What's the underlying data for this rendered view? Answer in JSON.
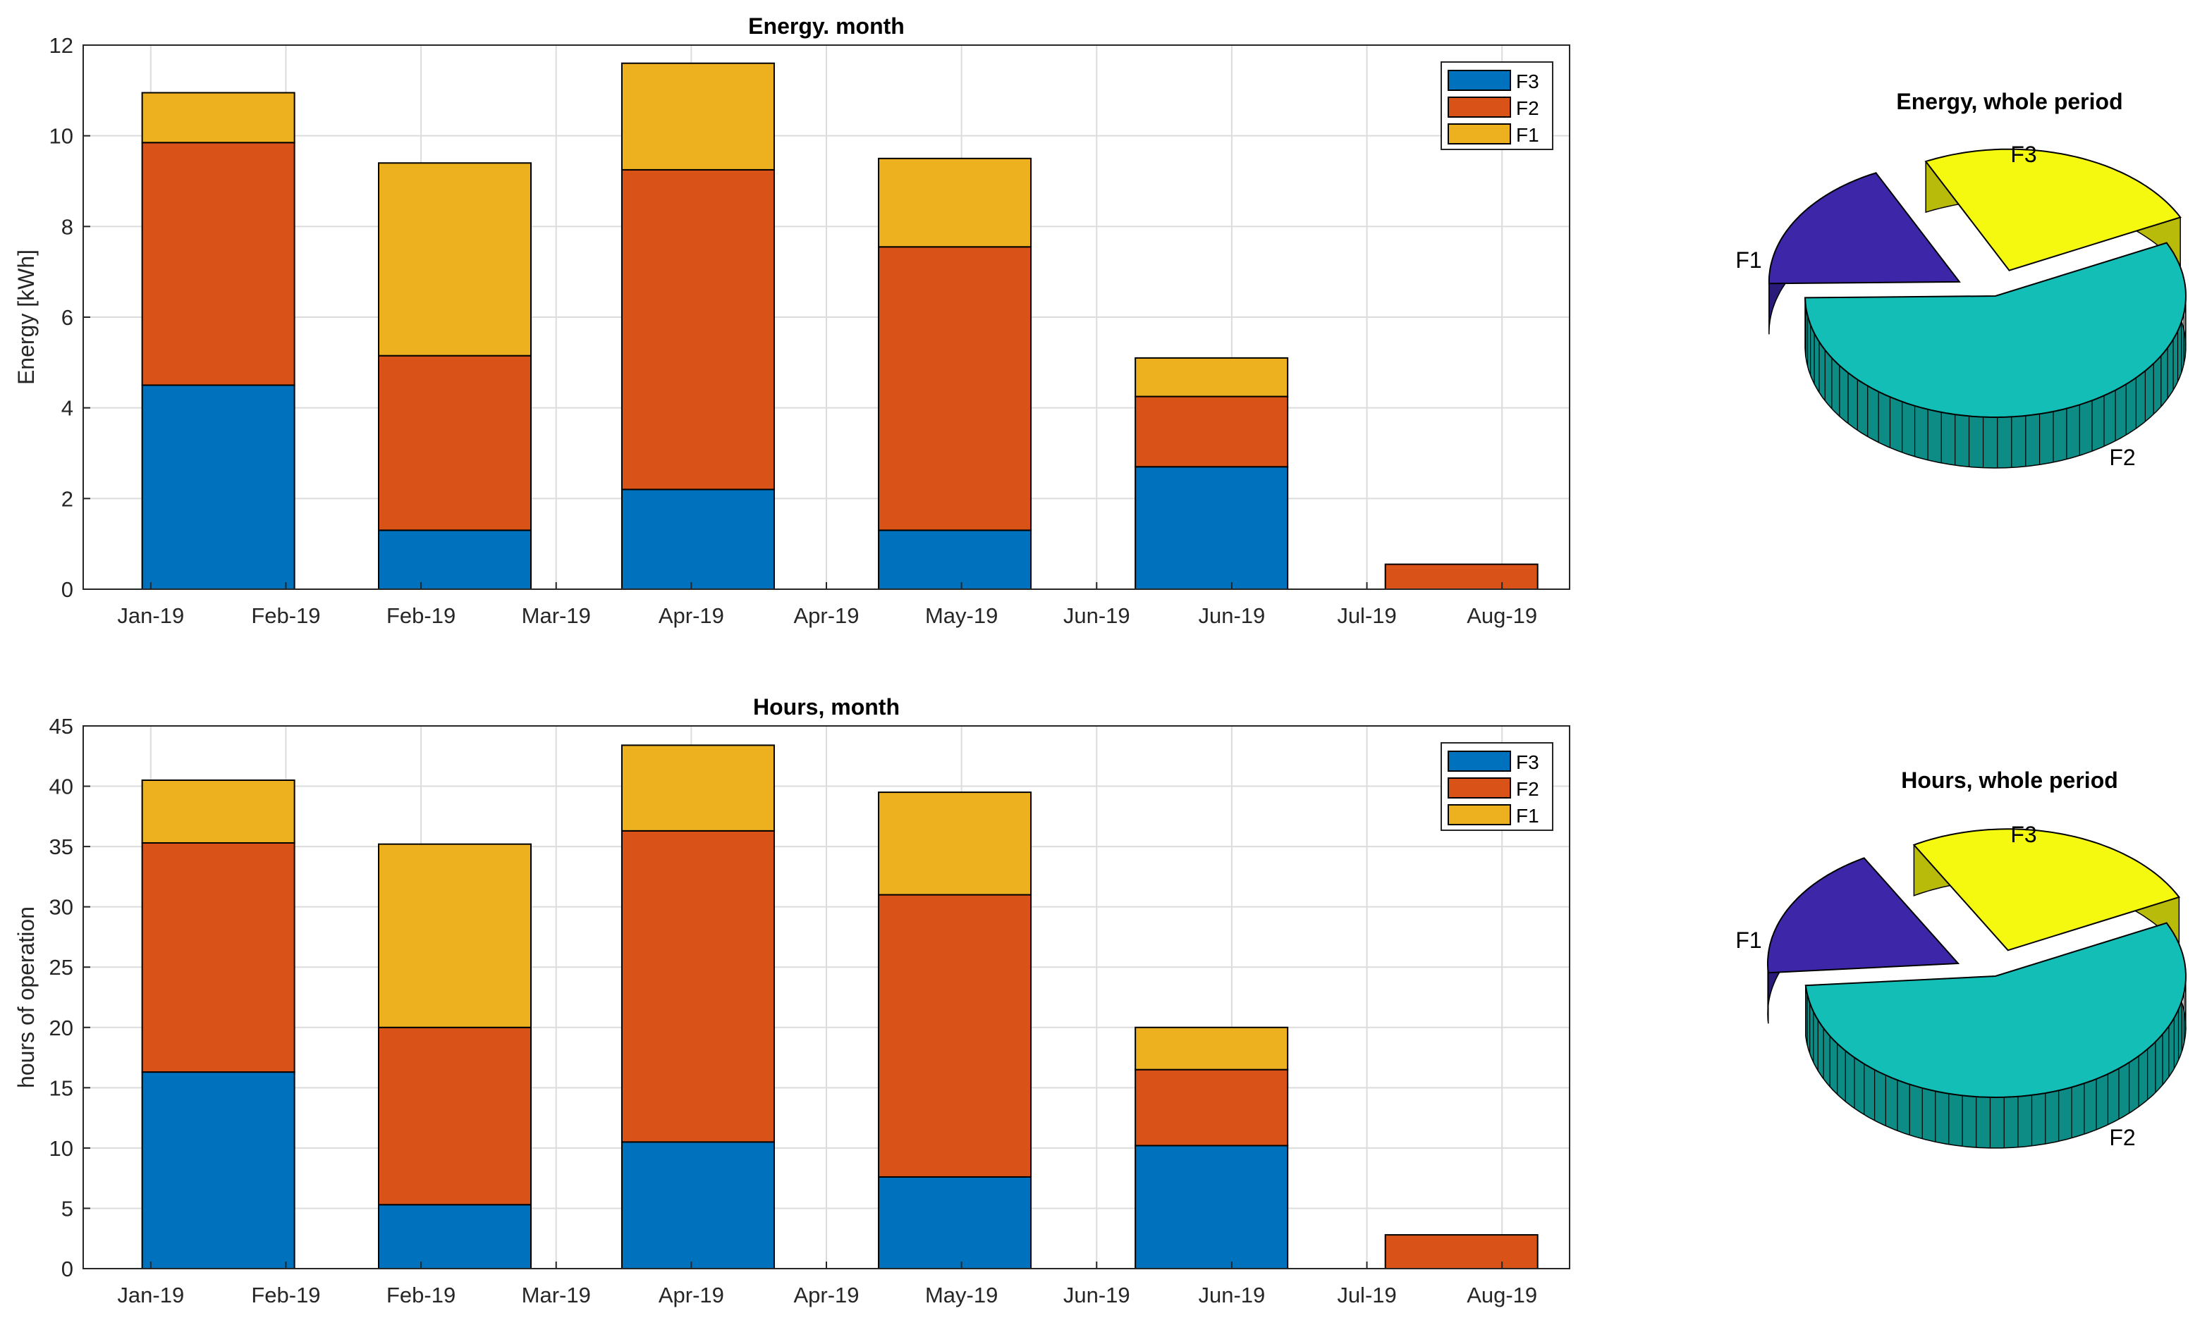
{
  "colors": {
    "F3_bar": "#0072BD",
    "F2_bar": "#D95319",
    "F1_bar": "#EDB120",
    "pie_F1": "#3D26A8",
    "pie_F2": "#13BEB7",
    "pie_F3": "#F5F80F",
    "grid": "#dcdcdc",
    "axis": "#262626"
  },
  "chart_data": [
    {
      "type": "bar",
      "stacked": true,
      "title": "Energy. month",
      "xlabel": "",
      "ylabel": "Energy [kWh]",
      "ylim": [
        0,
        12
      ],
      "yticks": [
        0,
        2,
        4,
        6,
        8,
        10,
        12
      ],
      "xticks": [
        "Jan-19",
        "Feb-19",
        "Feb-19",
        "Mar-19",
        "Apr-19",
        "Apr-19",
        "May-19",
        "Jun-19",
        "Jun-19",
        "Jul-19",
        "Aug-19"
      ],
      "bar_centers": [
        1.5,
        3.25,
        5.05,
        6.95,
        8.85,
        10.7
      ],
      "legend": [
        "F3",
        "F2",
        "F1"
      ],
      "legend_position": "top-right",
      "grid": true,
      "series": [
        {
          "name": "F3",
          "values": [
            4.5,
            1.3,
            2.2,
            1.3,
            2.7,
            0
          ]
        },
        {
          "name": "F2",
          "values": [
            5.35,
            3.85,
            7.05,
            6.25,
            1.55,
            0.55
          ]
        },
        {
          "name": "F1",
          "values": [
            1.1,
            4.25,
            2.35,
            1.95,
            0.85,
            0
          ]
        }
      ]
    },
    {
      "type": "bar",
      "stacked": true,
      "title": "Hours, month",
      "xlabel": "",
      "ylabel": "hours of operation",
      "ylim": [
        0,
        45
      ],
      "yticks": [
        0,
        5,
        10,
        15,
        20,
        25,
        30,
        35,
        40,
        45
      ],
      "xticks": [
        "Jan-19",
        "Feb-19",
        "Feb-19",
        "Mar-19",
        "Apr-19",
        "Apr-19",
        "May-19",
        "Jun-19",
        "Jun-19",
        "Jul-19",
        "Aug-19"
      ],
      "bar_centers": [
        1.5,
        3.25,
        5.05,
        6.95,
        8.85,
        10.7
      ],
      "legend": [
        "F3",
        "F2",
        "F1"
      ],
      "legend_position": "top-right",
      "grid": true,
      "series": [
        {
          "name": "F3",
          "values": [
            16.3,
            5.3,
            10.5,
            7.6,
            10.2,
            0
          ]
        },
        {
          "name": "F2",
          "values": [
            19.0,
            14.7,
            25.8,
            23.4,
            6.3,
            2.8
          ]
        },
        {
          "name": "F1",
          "values": [
            5.2,
            15.2,
            7.1,
            8.5,
            3.5,
            0
          ]
        }
      ]
    },
    {
      "type": "pie",
      "title": "Energy, whole period",
      "labels": [
        "F1",
        "F2",
        "F3"
      ],
      "values": [
        18,
        57,
        25
      ],
      "exploded": [
        "F1",
        "F3"
      ]
    },
    {
      "type": "pie",
      "title": "Hours, whole period",
      "labels": [
        "F1",
        "F2",
        "F3"
      ],
      "values": [
        18,
        56,
        26
      ],
      "exploded": [
        "F1",
        "F3"
      ]
    }
  ]
}
